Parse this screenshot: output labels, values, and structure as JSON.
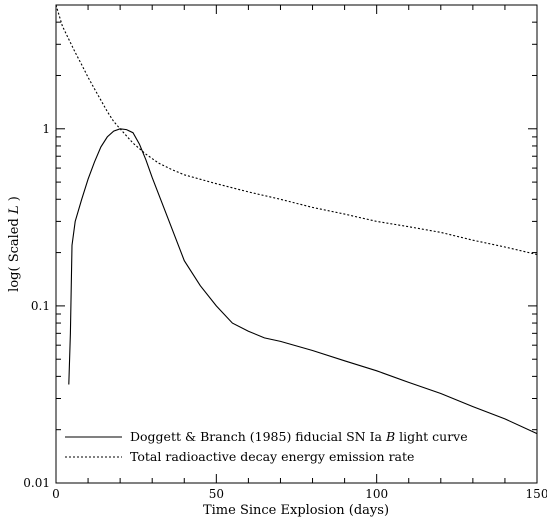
{
  "chart_data": {
    "type": "line",
    "title": "",
    "xlabel": "Time Since Explosion (days)",
    "ylabel": "log( Scaled L )",
    "ylabel_parts": {
      "prefix": "log( Scaled ",
      "var": "L",
      "suffix": " )"
    },
    "xlim": [
      0,
      150
    ],
    "ylim": [
      0.01,
      5
    ],
    "yscale": "log",
    "xticks": [
      0,
      50,
      100,
      150
    ],
    "xtick_labels": [
      "0",
      "50",
      "100",
      "150"
    ],
    "yticks": [
      0.01,
      0.1,
      1
    ],
    "ytick_labels": [
      "0.01",
      "0.1",
      "1"
    ],
    "grid": false,
    "legend_position": "bottom-left",
    "series": [
      {
        "name": "Doggett & Branch (1985) fiducial SN Ia B light curve",
        "name_parts": {
          "prefix": "Doggett & Branch (1985) fiducial SN Ia ",
          "var": "B",
          "suffix": " light curve"
        },
        "style": "solid",
        "x": [
          4,
          4.5,
          5,
          6,
          8,
          10,
          12,
          14,
          16,
          18,
          20,
          22,
          24,
          26,
          28,
          30,
          35,
          40,
          45,
          50,
          55,
          60,
          65,
          70,
          80,
          90,
          100,
          110,
          120,
          130,
          140,
          150
        ],
        "y": [
          0.036,
          0.07,
          0.22,
          0.3,
          0.4,
          0.52,
          0.65,
          0.79,
          0.9,
          0.97,
          1.0,
          0.99,
          0.95,
          0.82,
          0.67,
          0.53,
          0.31,
          0.18,
          0.13,
          0.1,
          0.08,
          0.072,
          0.066,
          0.063,
          0.056,
          0.049,
          0.043,
          0.037,
          0.032,
          0.027,
          0.023,
          0.019
        ]
      },
      {
        "name": "Total radioactive decay energy emission rate",
        "style": "dotted",
        "x": [
          0,
          2,
          4,
          6,
          8,
          10,
          12,
          14,
          16,
          18,
          20,
          24,
          28,
          32,
          36,
          40,
          50,
          60,
          70,
          80,
          90,
          100,
          110,
          120,
          130,
          140,
          150
        ],
        "y": [
          5.0,
          3.8,
          3.2,
          2.7,
          2.3,
          1.95,
          1.68,
          1.45,
          1.25,
          1.1,
          1.0,
          0.83,
          0.72,
          0.64,
          0.59,
          0.55,
          0.49,
          0.44,
          0.4,
          0.36,
          0.33,
          0.3,
          0.28,
          0.26,
          0.235,
          0.215,
          0.195
        ]
      }
    ]
  }
}
